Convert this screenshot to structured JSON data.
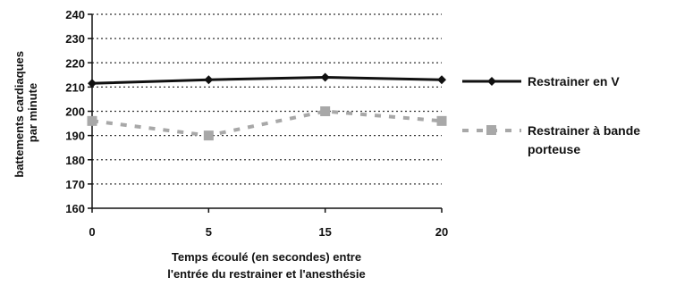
{
  "chart_data": {
    "type": "line",
    "title": "",
    "ylabel": "battements cardiaques par minute",
    "xlabel_lines": [
      "Temps écoulé (en secondes) entre",
      "l'entrée du restrainer et l'anesthésie"
    ],
    "x_ticks": [
      "0",
      "5",
      "15",
      "20"
    ],
    "ylim": [
      160,
      240
    ],
    "y_ticks": [
      160,
      170,
      180,
      190,
      200,
      210,
      220,
      230,
      240
    ],
    "grid": "horizontal dotted",
    "legend_position": "right",
    "series": [
      {
        "name": "Restrainer en V",
        "color": "#111111",
        "style": "solid-line-diamond-markers",
        "x": [
          0,
          5,
          15,
          20
        ],
        "values": [
          211.5,
          213,
          214,
          213
        ]
      },
      {
        "name_lines": [
          "Restrainer à bande",
          "porteuse"
        ],
        "color": "#a8a8a8",
        "style": "dashed-square-markers",
        "x": [
          0,
          5,
          15,
          20
        ],
        "values": [
          196,
          190,
          200,
          196
        ]
      }
    ]
  }
}
